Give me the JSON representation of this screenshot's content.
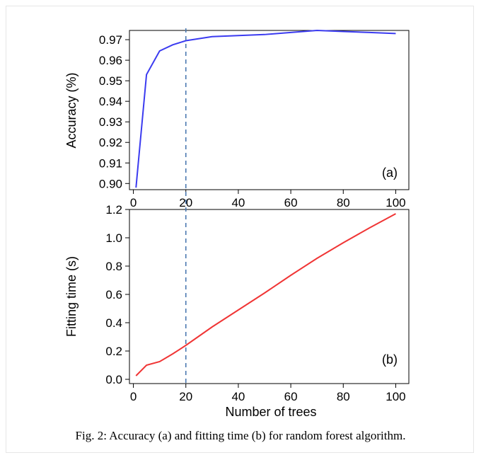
{
  "caption": "Fig. 2: Accuracy (a) and fitting time (b) for random forest algorithm.",
  "marker": {
    "x": 20,
    "color": "#4a78b0"
  },
  "chart_data": [
    {
      "type": "line",
      "panel_label": "(a)",
      "ylabel": "Accuracy (%)",
      "xlabel": "",
      "xlim": [
        -1.5,
        105
      ],
      "ylim": [
        0.897,
        0.9745
      ],
      "xticks": [
        0,
        20,
        40,
        60,
        80,
        100
      ],
      "xtick_labels": [
        "0",
        "20",
        "40",
        "60",
        "80",
        "100"
      ],
      "yticks": [
        0.9,
        0.91,
        0.92,
        0.93,
        0.94,
        0.95,
        0.96,
        0.97
      ],
      "ytick_labels": [
        "0.90",
        "0.91",
        "0.92",
        "0.93",
        "0.94",
        "0.95",
        "0.96",
        "0.97"
      ],
      "color": "#3b3bf0",
      "series": [
        {
          "x": [
            1,
            5,
            10,
            15,
            20,
            30,
            40,
            50,
            60,
            70,
            80,
            90,
            100
          ],
          "y": [
            0.898,
            0.953,
            0.9645,
            0.9675,
            0.9695,
            0.9715,
            0.972,
            0.9725,
            0.9735,
            0.9745,
            0.974,
            0.9735,
            0.973
          ]
        }
      ]
    },
    {
      "type": "line",
      "panel_label": "(b)",
      "ylabel": "Fitting time (s)",
      "xlabel": "Number of trees",
      "xlim": [
        -1.5,
        105
      ],
      "ylim": [
        -0.03,
        1.2
      ],
      "xticks": [
        0,
        20,
        40,
        60,
        80,
        100
      ],
      "xtick_labels": [
        "0",
        "20",
        "40",
        "60",
        "80",
        "100"
      ],
      "yticks": [
        0.0,
        0.2,
        0.4,
        0.6,
        0.8,
        1.0,
        1.2
      ],
      "ytick_labels": [
        "0.0",
        "0.2",
        "0.4",
        "0.6",
        "0.8",
        "1.0",
        "1.2"
      ],
      "color": "#f03535",
      "series": [
        {
          "x": [
            1,
            5,
            10,
            15,
            20,
            30,
            40,
            50,
            60,
            70,
            80,
            90,
            100
          ],
          "y": [
            0.025,
            0.1,
            0.125,
            0.18,
            0.24,
            0.37,
            0.49,
            0.61,
            0.735,
            0.855,
            0.965,
            1.07,
            1.17
          ]
        }
      ]
    }
  ]
}
